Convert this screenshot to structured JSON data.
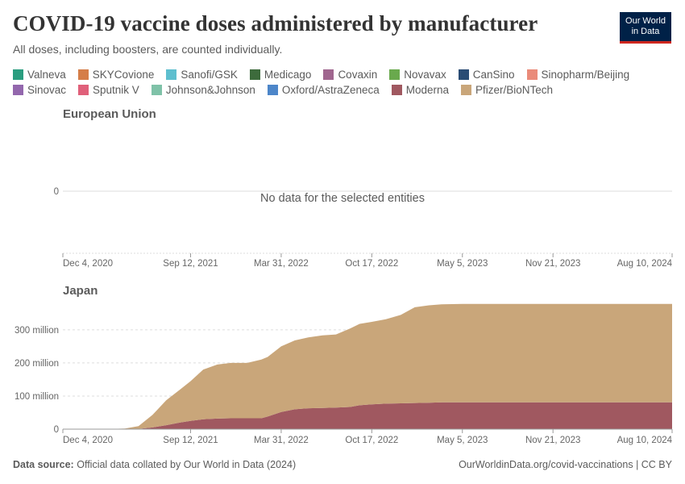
{
  "header": {
    "title": "COVID-19 vaccine doses administered by manufacturer",
    "subtitle": "All doses, including boosters, are counted individually.",
    "logo_line1": "Our World",
    "logo_line2": "in Data"
  },
  "legend": [
    [
      {
        "name": "Valneva",
        "color": "#2a9d7f"
      },
      {
        "name": "SKYCovione",
        "color": "#d57e49"
      },
      {
        "name": "Sanofi/GSK",
        "color": "#5ebfcf"
      },
      {
        "name": "Medicago",
        "color": "#3d6b3c"
      },
      {
        "name": "Covaxin",
        "color": "#a0668f"
      },
      {
        "name": "Novavax",
        "color": "#69a94d"
      },
      {
        "name": "CanSino",
        "color": "#2a4c74"
      },
      {
        "name": "Sinopharm/Beijing",
        "color": "#ea8b7a"
      }
    ],
    [
      {
        "name": "Sinovac",
        "color": "#9367ad"
      },
      {
        "name": "Sputnik V",
        "color": "#e0607a"
      },
      {
        "name": "Johnson&Johnson",
        "color": "#7fc2a8"
      },
      {
        "name": "Oxford/AstraZeneca",
        "color": "#4d86c9"
      },
      {
        "name": "Moderna",
        "color": "#a05860"
      },
      {
        "name": "Pfizer/BioNTech",
        "color": "#c9a67a"
      }
    ]
  ],
  "footer": {
    "source_label": "Data source:",
    "source_text": "Official data collated by Our World in Data (2024)",
    "url_text": "OurWorldinData.org/covid-vaccinations | CC BY"
  },
  "chart_data": [
    {
      "type": "area",
      "title": "European Union",
      "message": "No data for the selected entities",
      "x_ticks": [
        "Dec 4, 2020",
        "Sep 12, 2021",
        "Mar 31, 2022",
        "Oct 17, 2022",
        "May 5, 2023",
        "Nov 21, 2023",
        "Aug 10, 2024"
      ],
      "y_ticks": [
        "0"
      ],
      "series": []
    },
    {
      "type": "area",
      "stacked": true,
      "title": "Japan",
      "x_ticks": [
        "Dec 4, 2020",
        "Sep 12, 2021",
        "Mar 31, 2022",
        "Oct 17, 2022",
        "May 5, 2023",
        "Nov 21, 2023",
        "Aug 10, 2024"
      ],
      "y_ticks": [
        "0",
        "100 million",
        "200 million",
        "300 million"
      ],
      "ylim": [
        0,
        380000000
      ],
      "x": [
        "2020-12-04",
        "2021-02-15",
        "2021-03-20",
        "2021-04-20",
        "2021-05-20",
        "2021-06-20",
        "2021-07-20",
        "2021-08-20",
        "2021-09-12",
        "2021-10-10",
        "2021-11-10",
        "2021-12-10",
        "2022-01-15",
        "2022-02-15",
        "2022-03-01",
        "2022-03-31",
        "2022-04-30",
        "2022-05-30",
        "2022-06-30",
        "2022-07-30",
        "2022-08-30",
        "2022-09-20",
        "2022-10-17",
        "2022-11-17",
        "2022-12-20",
        "2023-01-20",
        "2023-02-20",
        "2023-03-20",
        "2023-05-05",
        "2023-08-01",
        "2023-11-21",
        "2024-04-01",
        "2024-08-10"
      ],
      "series": [
        {
          "name": "Moderna",
          "color": "#a05860",
          "values": [
            0,
            0,
            0,
            200000,
            1000000,
            5000000,
            12000000,
            20000000,
            25000000,
            30000000,
            32000000,
            33000000,
            33000000,
            33000000,
            38000000,
            52000000,
            60000000,
            63000000,
            64000000,
            65000000,
            67000000,
            72000000,
            75000000,
            77000000,
            78000000,
            79000000,
            80000000,
            81000000,
            81000000,
            81000000,
            81000000,
            81000000,
            81000000
          ]
        },
        {
          "name": "Pfizer/BioNTech",
          "color": "#c9a67a",
          "values": [
            0,
            0,
            500000,
            1500000,
            8000000,
            38000000,
            75000000,
            100000000,
            120000000,
            150000000,
            163000000,
            167000000,
            167000000,
            177000000,
            180000000,
            198000000,
            208000000,
            214000000,
            219000000,
            221000000,
            237000000,
            246000000,
            249000000,
            255000000,
            267000000,
            289000000,
            294000000,
            296000000,
            297000000,
            297000000,
            297000000,
            297000000,
            297000000
          ]
        }
      ]
    }
  ]
}
